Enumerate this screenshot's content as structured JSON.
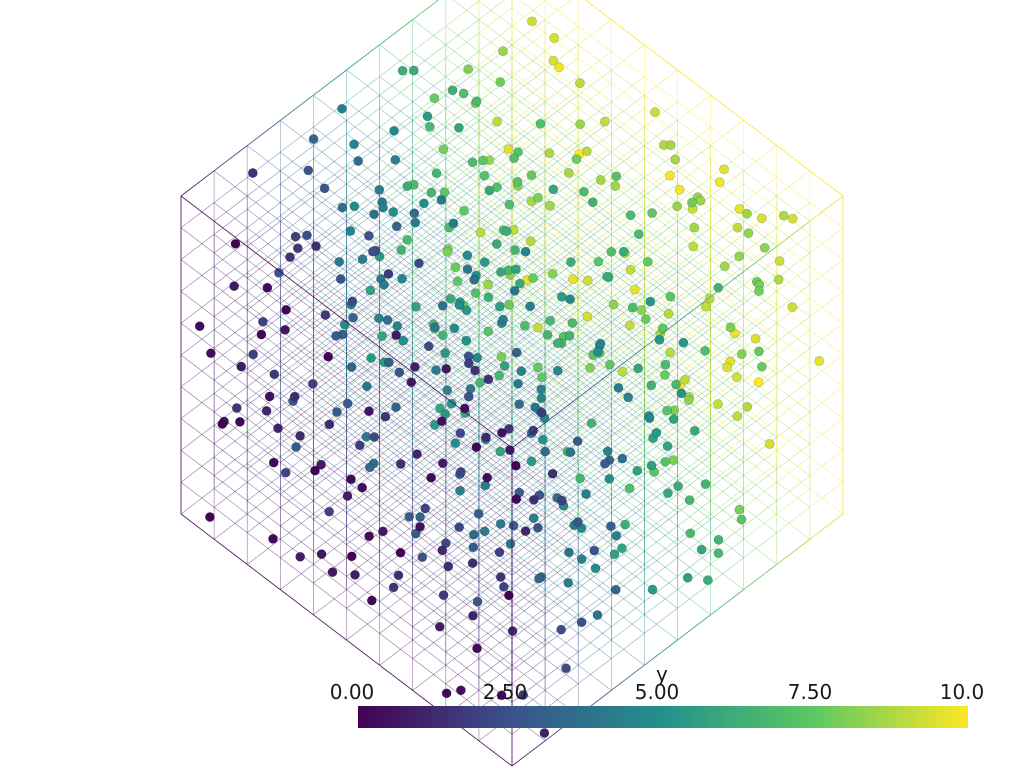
{
  "colorbar": {
    "title": "y",
    "ticks": [
      "0.00",
      "2.50",
      "5.00",
      "7.50",
      "10.0"
    ],
    "range": [
      0,
      10
    ],
    "colormap": "viridis",
    "stops": [
      "#440154",
      "#3b528b",
      "#21918c",
      "#5ec962",
      "#fde725"
    ]
  },
  "scene": {
    "type": "3d-scatter-in-wireframe-grid",
    "grid_divisions": 10,
    "point_count_approx": 500,
    "background": "#ffffff"
  }
}
